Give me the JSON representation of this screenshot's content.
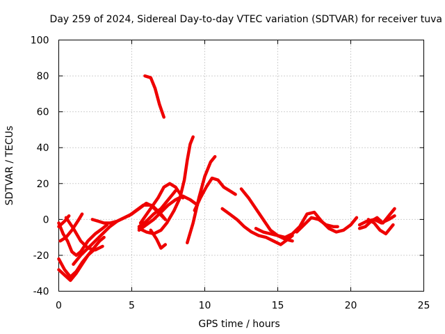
{
  "chart_data": {
    "type": "scatter",
    "title": "Day 259 of 2024, Sidereal Day-to-day VTEC variation (SDTVAR) for receiver tuva",
    "xlabel": "GPS time / hours",
    "ylabel": "SDTVAR / TECUs",
    "xlim": [
      0,
      25
    ],
    "ylim": [
      -40,
      100
    ],
    "xticks": [
      0,
      5,
      10,
      15,
      20,
      25
    ],
    "yticks": [
      -40,
      -20,
      0,
      20,
      40,
      60,
      80,
      100
    ],
    "grid": true,
    "marker": "+",
    "color": "#ee0000",
    "series": [
      {
        "name": "arc1",
        "x": [
          0.0,
          0.3,
          0.6,
          0.9,
          1.2,
          1.5,
          2.0,
          2.5,
          3.0,
          3.3
        ],
        "y": [
          -2,
          -8,
          -12,
          -18,
          -20,
          -18,
          -12,
          -8,
          -5,
          -3
        ]
      },
      {
        "name": "arc2",
        "x": [
          0.0,
          0.4,
          0.8,
          1.2,
          1.6,
          2.0,
          2.4,
          2.8,
          3.1
        ],
        "y": [
          -22,
          -28,
          -32,
          -29,
          -24,
          -20,
          -16,
          -12,
          -10
        ]
      },
      {
        "name": "arc3",
        "x": [
          0.0,
          0.4,
          0.8,
          1.2,
          1.6,
          2.0,
          2.4
        ],
        "y": [
          -28,
          -31,
          -34,
          -30,
          -25,
          -20,
          -17
        ]
      },
      {
        "name": "arc4",
        "x": [
          0.1,
          0.5,
          0.9,
          1.3,
          1.6
        ],
        "y": [
          -12,
          -10,
          -6,
          -1,
          3
        ]
      },
      {
        "name": "arc5",
        "x": [
          0.5,
          1.0,
          1.5,
          2.0,
          2.5,
          3.0
        ],
        "y": [
          1,
          -5,
          -12,
          -16,
          -17,
          -15
        ]
      },
      {
        "name": "arc6",
        "x": [
          0.0,
          0.4,
          0.7
        ],
        "y": [
          -4,
          -1,
          2
        ]
      },
      {
        "name": "arc7",
        "x": [
          1.0,
          1.5,
          2.0,
          2.5,
          3.0,
          3.5,
          4.0,
          4.5,
          5.0,
          5.5,
          6.0,
          6.5,
          7.0,
          7.3
        ],
        "y": [
          -25,
          -20,
          -16,
          -12,
          -8,
          -4,
          -1,
          1,
          3,
          6,
          9,
          7,
          3,
          0
        ]
      },
      {
        "name": "arc8",
        "x": [
          2.3,
          2.7,
          3.1,
          3.5,
          4.0,
          4.5,
          5.0
        ],
        "y": [
          0,
          -1,
          -2,
          -2,
          -1,
          1,
          3
        ]
      },
      {
        "name": "arc9",
        "x": [
          4.8,
          5.3,
          5.8,
          6.3,
          6.8,
          7.3
        ],
        "y": [
          2,
          5,
          8,
          8,
          4,
          0
        ]
      },
      {
        "name": "arc10",
        "x": [
          5.5,
          6.0,
          6.5,
          7.0,
          7.5,
          8.0,
          8.5,
          9.0,
          9.5
        ],
        "y": [
          -6,
          -3,
          0,
          4,
          8,
          11,
          13,
          11,
          8
        ]
      },
      {
        "name": "arc11",
        "x": [
          5.5,
          6.0,
          6.5,
          7.0,
          7.4,
          7.8,
          8.0
        ],
        "y": [
          -4,
          -1,
          3,
          6,
          10,
          14,
          16
        ]
      },
      {
        "name": "arc12",
        "x": [
          5.6,
          6.2,
          6.8,
          7.2,
          7.6,
          8.0,
          8.5
        ],
        "y": [
          -2,
          5,
          12,
          18,
          20,
          18,
          12
        ]
      },
      {
        "name": "arc13",
        "x": [
          6.3,
          6.7,
          7.0,
          7.3
        ],
        "y": [
          -6,
          -11,
          -16,
          -14
        ]
      },
      {
        "name": "arc14",
        "x": [
          5.5,
          6.0,
          6.5,
          7.0,
          7.4,
          7.9,
          8.3,
          8.6,
          8.8,
          9.0,
          9.2
        ],
        "y": [
          -5,
          -7,
          -8,
          -6,
          -2,
          5,
          12,
          22,
          33,
          42,
          46
        ]
      },
      {
        "name": "arc15",
        "x": [
          8.8,
          9.2,
          9.6,
          10.0,
          10.4,
          10.7
        ],
        "y": [
          -13,
          -2,
          12,
          24,
          32,
          35
        ]
      },
      {
        "name": "arc16",
        "x": [
          9.3,
          9.7,
          10.1,
          10.5,
          10.9,
          11.3,
          11.7,
          12.1
        ],
        "y": [
          5,
          12,
          18,
          23,
          22,
          18,
          16,
          14
        ]
      },
      {
        "name": "arc17",
        "x": [
          5.9,
          6.3,
          6.6,
          6.9,
          7.2
        ],
        "y": [
          80,
          79,
          73,
          64,
          57
        ]
      },
      {
        "name": "arc18",
        "x": [
          11.2,
          11.7,
          12.2,
          12.7,
          13.2,
          13.7,
          14.2,
          14.7,
          15.2,
          15.7,
          16.0
        ],
        "y": [
          6,
          3,
          0,
          -4,
          -7,
          -9,
          -10,
          -12,
          -14,
          -11,
          -9
        ]
      },
      {
        "name": "arc19",
        "x": [
          12.5,
          13.0,
          13.5,
          14.0,
          14.5,
          15.0,
          15.5,
          16.0
        ],
        "y": [
          17,
          12,
          6,
          0,
          -6,
          -9,
          -11,
          -12
        ]
      },
      {
        "name": "arc20",
        "x": [
          13.5,
          14.0,
          14.5,
          15.0,
          15.5,
          16.0,
          16.5,
          17.0,
          17.5,
          18.0,
          18.5,
          19.0,
          19.5,
          20.0,
          20.4
        ],
        "y": [
          -5,
          -7,
          -8,
          -9,
          -10,
          -8,
          -4,
          3,
          4,
          -1,
          -5,
          -7,
          -6,
          -3,
          1
        ]
      },
      {
        "name": "arc21",
        "x": [
          16.3,
          16.8,
          17.3,
          17.8,
          18.3,
          18.8,
          19.1
        ],
        "y": [
          -7,
          -3,
          1,
          0,
          -3,
          -4,
          -4
        ]
      },
      {
        "name": "arc22",
        "x": [
          20.6,
          21.0,
          21.4,
          21.8,
          22.2,
          22.6,
          23.0
        ],
        "y": [
          -5,
          -4,
          -1,
          1,
          -2,
          2,
          6
        ]
      },
      {
        "name": "arc23",
        "x": [
          20.6,
          21.1,
          21.6,
          22.1,
          22.6,
          23.0
        ],
        "y": [
          -3,
          -1,
          0,
          -2,
          0,
          2
        ]
      },
      {
        "name": "arc24",
        "x": [
          21.2,
          21.6,
          22.0,
          22.4,
          22.9
        ],
        "y": [
          0,
          -2,
          -6,
          -8,
          -3
        ]
      }
    ]
  }
}
